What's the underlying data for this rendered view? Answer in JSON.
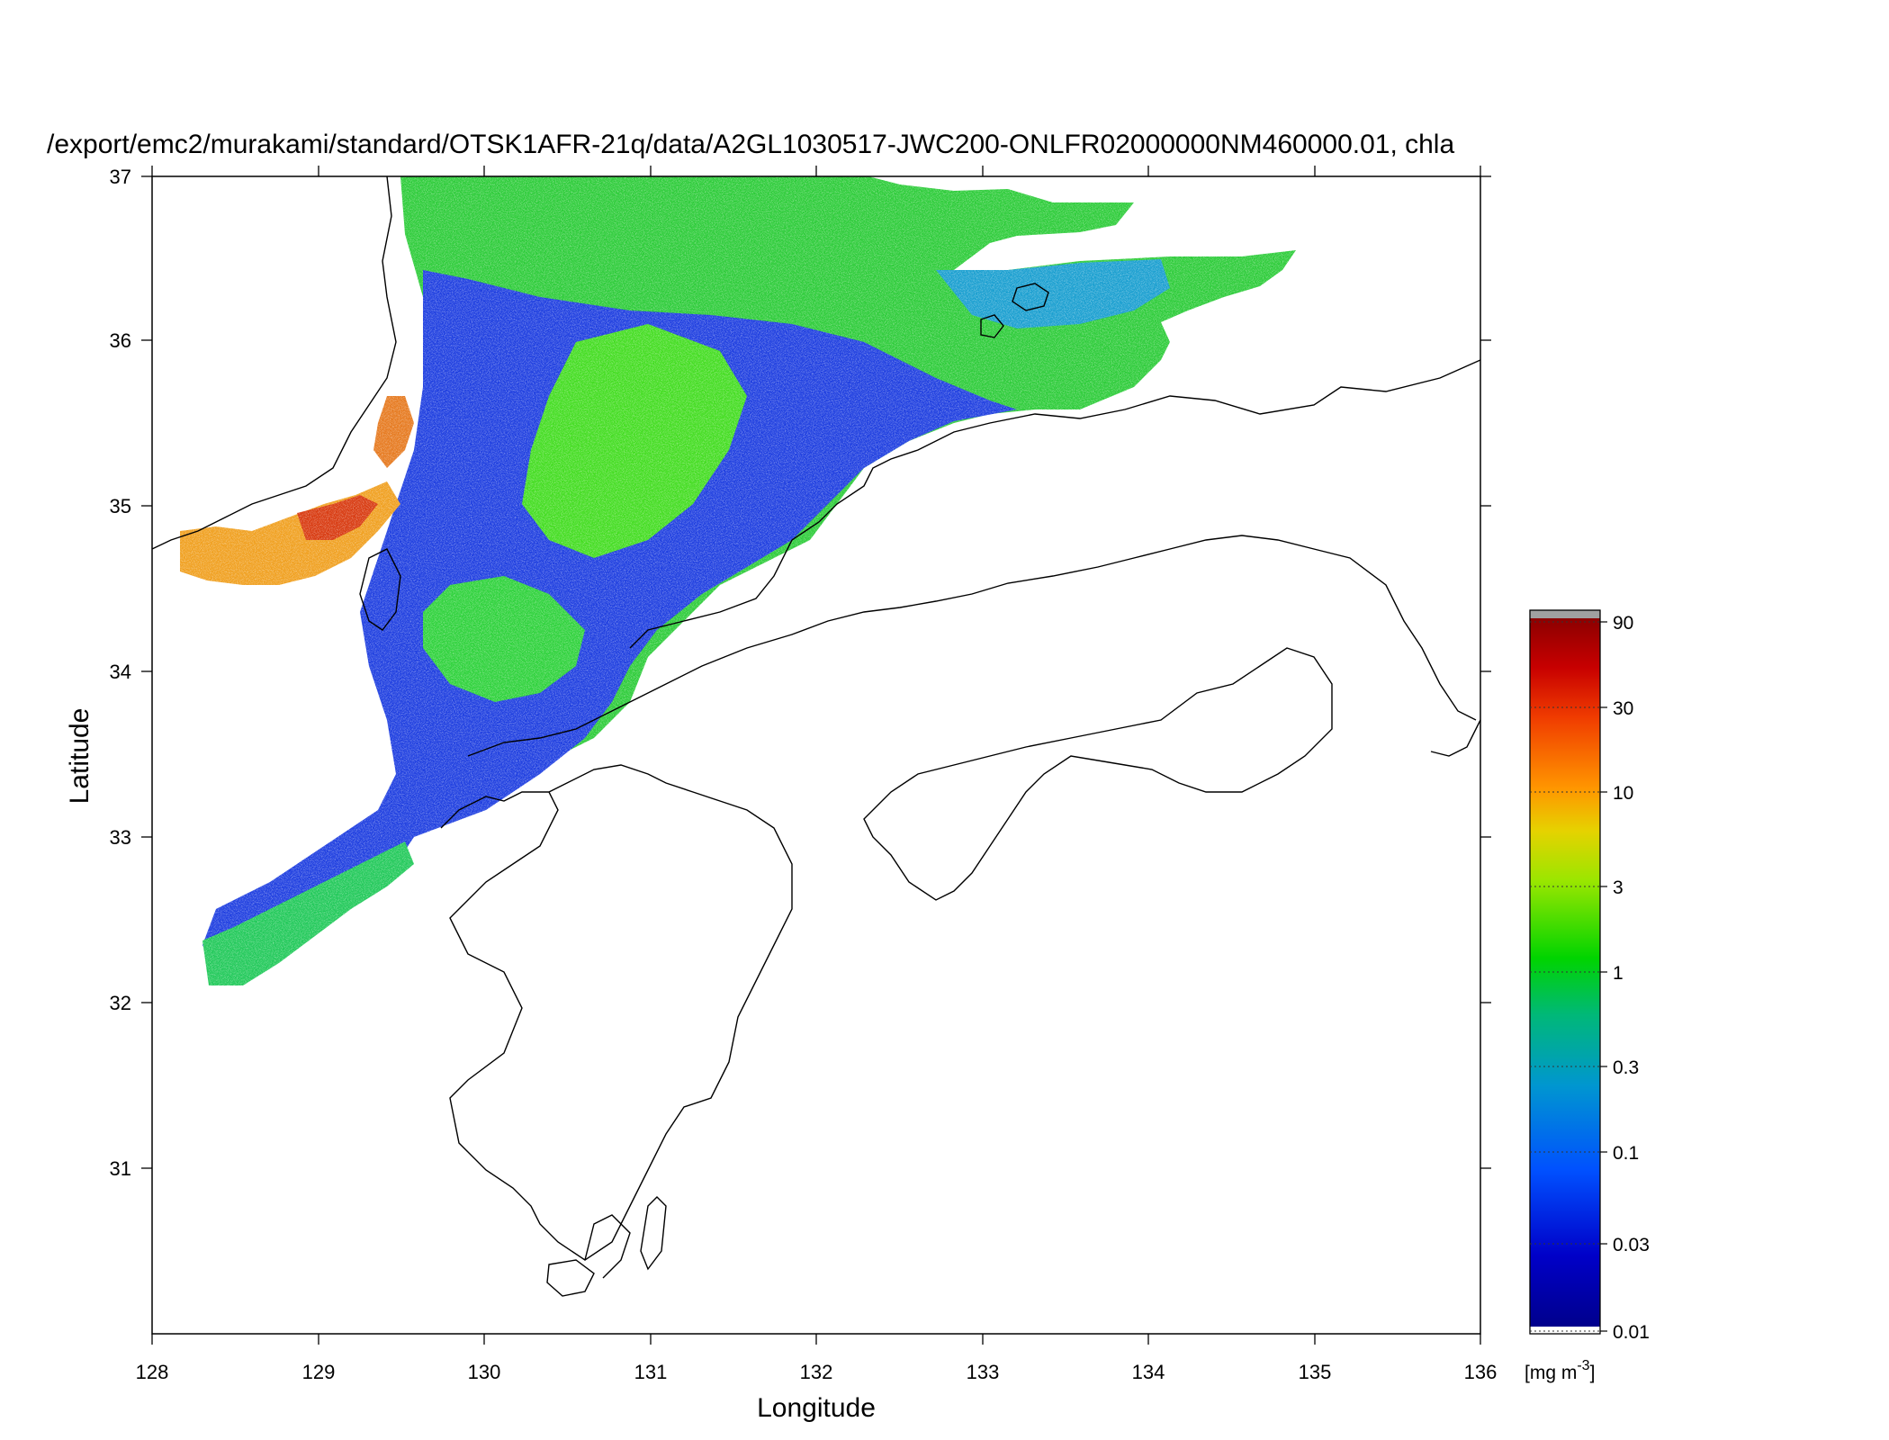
{
  "title": "/export/emc2/murakami/standard/OTSK1AFR-21q/data/A2GL1030517-JWC200-ONLFR02000000NM460000.01, chla",
  "xlabel": "Longitude",
  "ylabel": "Latitude",
  "xticks": [
    "128",
    "129",
    "130",
    "131",
    "132",
    "133",
    "134",
    "135",
    "136"
  ],
  "yticks": [
    "31",
    "32",
    "33",
    "34",
    "35",
    "36",
    "37"
  ],
  "colorbar": {
    "unit_prefix": "[mg m",
    "unit_sup": "-3",
    "unit_suffix": "]",
    "ticks": [
      "0.01",
      "0.03",
      "0.1",
      "0.3",
      "1",
      "3",
      "10",
      "30",
      "90"
    ],
    "scale": "log",
    "range": [
      0.01,
      90
    ],
    "colors": [
      "#00008c",
      "#0000c8",
      "#0050ff",
      "#0096d0",
      "#00b878",
      "#00d400",
      "#9be600",
      "#e6d200",
      "#ff9600",
      "#f03c00",
      "#c80000",
      "#8c0000"
    ],
    "overflow_color": "#a0a0a0"
  },
  "chart_data": {
    "type": "heatmap",
    "variable": "chla",
    "xlim": [
      128,
      136
    ],
    "ylim": [
      30.2,
      37
    ],
    "background": "#ffffff",
    "coastline_color": "#000000"
  }
}
